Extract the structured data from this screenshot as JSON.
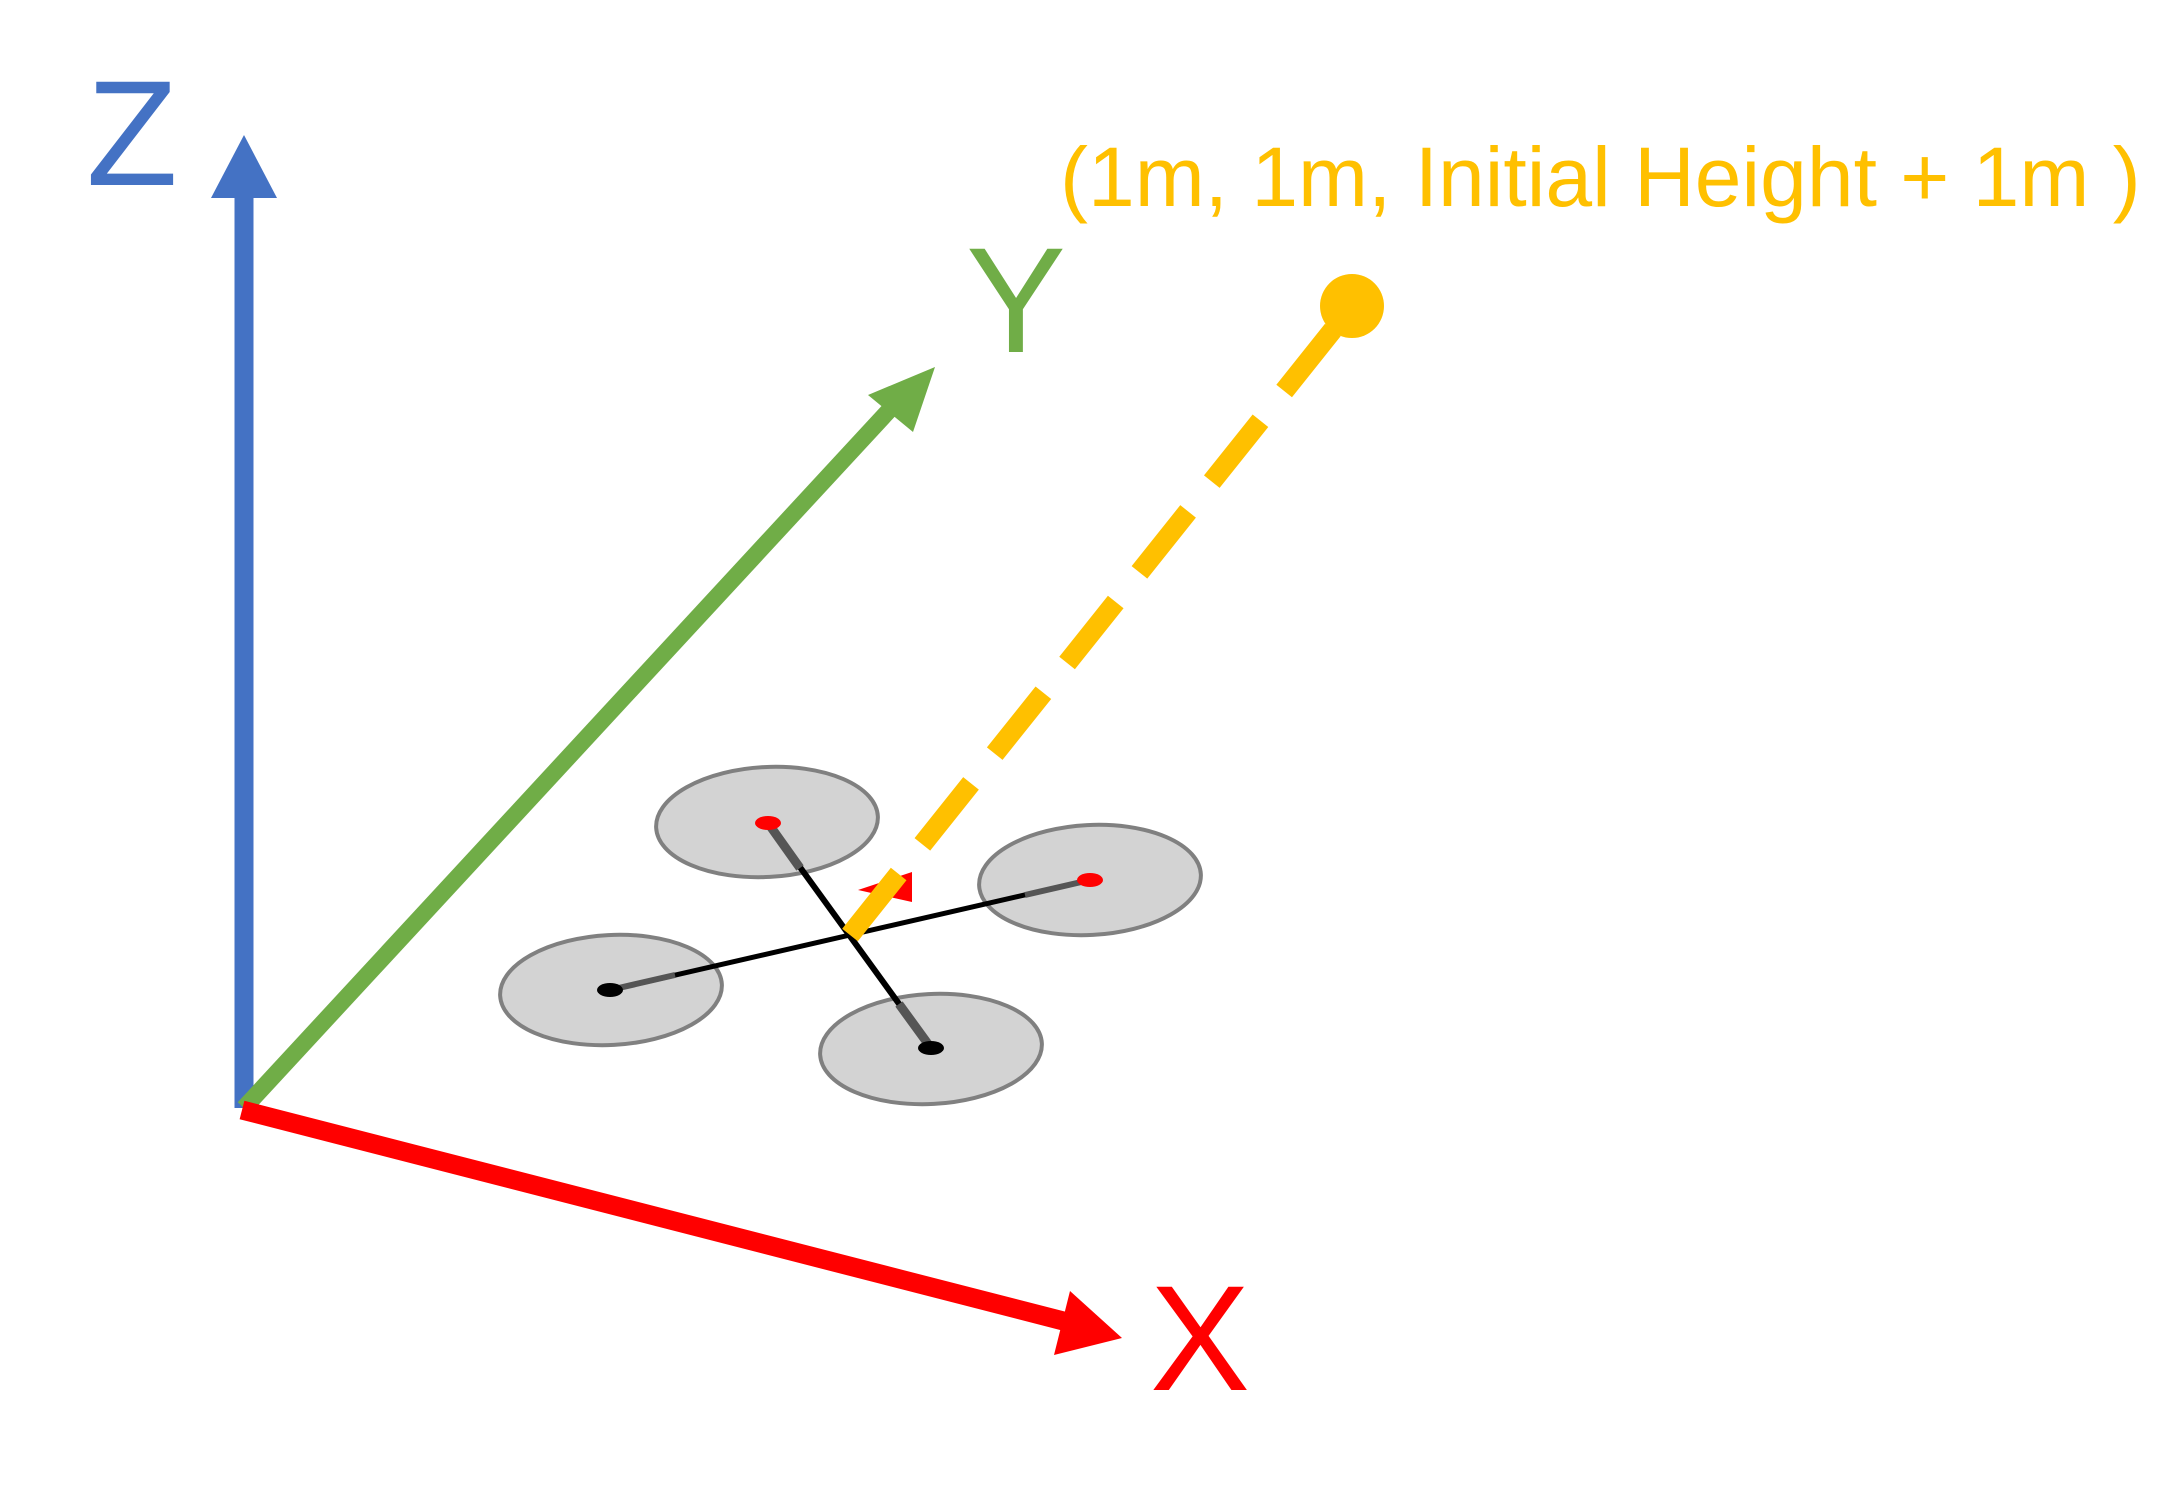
{
  "colors": {
    "z_axis": "#4472C4",
    "y_axis": "#70AD47",
    "x_axis": "#FF0000",
    "target": "#FFC000",
    "rotor_fill": "#D3D3D3",
    "rotor_stroke": "#808080",
    "motor_front": "#FF0000",
    "motor_rear": "#000000",
    "frame": "#000000"
  },
  "axes": {
    "z_label": "Z",
    "y_label": "Y",
    "x_label": "X"
  },
  "target": {
    "label": "(1m, 1m, Initial Height + 1m )"
  },
  "drone": {
    "rotor_count": 4
  }
}
